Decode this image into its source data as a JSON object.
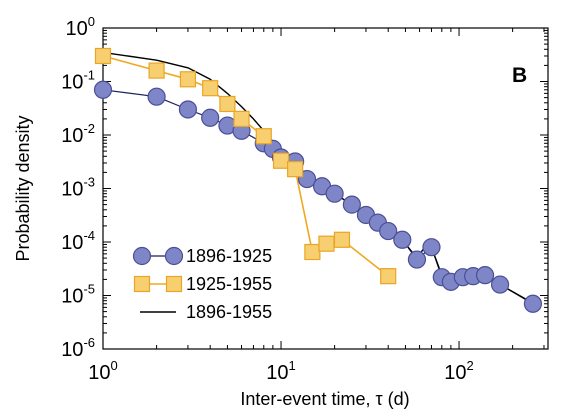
{
  "chart_data": {
    "type": "line",
    "panel_label": "B",
    "xlabel": "Inter-event time, τ (d)",
    "ylabel": "Probability density",
    "x_scale": "log",
    "y_scale": "log",
    "xlim": [
      1,
      316
    ],
    "ylim": [
      1e-06,
      1
    ],
    "x_ticks": [
      {
        "value": 1,
        "base": "10",
        "exp": "0"
      },
      {
        "value": 10,
        "base": "10",
        "exp": "1"
      },
      {
        "value": 100,
        "base": "10",
        "exp": "2"
      }
    ],
    "y_ticks": [
      {
        "value": 1,
        "base": "10",
        "exp": "0"
      },
      {
        "value": 0.1,
        "base": "10",
        "exp": "-1"
      },
      {
        "value": 0.01,
        "base": "10",
        "exp": "-2"
      },
      {
        "value": 0.001,
        "base": "10",
        "exp": "-3"
      },
      {
        "value": 0.0001,
        "base": "10",
        "exp": "-4"
      },
      {
        "value": 1e-05,
        "base": "10",
        "exp": "-5"
      },
      {
        "value": 1e-06,
        "base": "10",
        "exp": "-6"
      }
    ],
    "legend_position": "bottom-left",
    "series": [
      {
        "name": "1896-1925",
        "marker": "circle",
        "color": "#7f86c8",
        "stroke": "#4a4f96",
        "line_color": "#1a1f5e",
        "x": [
          1,
          2,
          3,
          4,
          5,
          6,
          8,
          9,
          10,
          12,
          14,
          17,
          20,
          25,
          30,
          35,
          40,
          48,
          58,
          70,
          80,
          90,
          105,
          120,
          140,
          170,
          260
        ],
        "y": [
          0.07,
          0.052,
          0.03,
          0.021,
          0.015,
          0.012,
          0.007,
          0.0055,
          0.0038,
          0.0032,
          0.0015,
          0.0011,
          0.0008,
          0.0005,
          0.00032,
          0.00023,
          0.00016,
          0.00011,
          4.7e-05,
          8e-05,
          2.2e-05,
          1.8e-05,
          2.2e-05,
          2.3e-05,
          2.4e-05,
          1.6e-05,
          7e-06
        ]
      },
      {
        "name": "1925-1955",
        "marker": "square",
        "color": "#f7cf70",
        "stroke": "#e8a626",
        "line_color": "#f0a820",
        "x": [
          1,
          2,
          3,
          4,
          5,
          6,
          8,
          10,
          12,
          15,
          18,
          22,
          40
        ],
        "y": [
          0.3,
          0.16,
          0.11,
          0.075,
          0.038,
          0.02,
          0.0095,
          0.0033,
          0.0023,
          6.5e-05,
          9.3e-05,
          0.00011,
          2.3e-05
        ]
      },
      {
        "name": "1896-1955",
        "marker": "none",
        "color": "#000000",
        "x": [
          1,
          2,
          3,
          4,
          5,
          6,
          7,
          8,
          9,
          10,
          11,
          12,
          14,
          17,
          20,
          25,
          30,
          35,
          40,
          48,
          58,
          65,
          70,
          80,
          90,
          105,
          120,
          140,
          170,
          260
        ],
        "y": [
          0.35,
          0.25,
          0.18,
          0.11,
          0.06,
          0.034,
          0.02,
          0.012,
          0.0075,
          0.0052,
          0.0042,
          0.0035,
          0.0016,
          0.0011,
          0.0008,
          0.0005,
          0.00032,
          0.00022,
          0.00016,
          0.00011,
          5e-05,
          8.5e-05,
          8e-05,
          2.4e-05,
          1.9e-05,
          2.1e-05,
          2.2e-05,
          2.2e-05,
          1.6e-05,
          7.2e-06
        ]
      }
    ]
  }
}
